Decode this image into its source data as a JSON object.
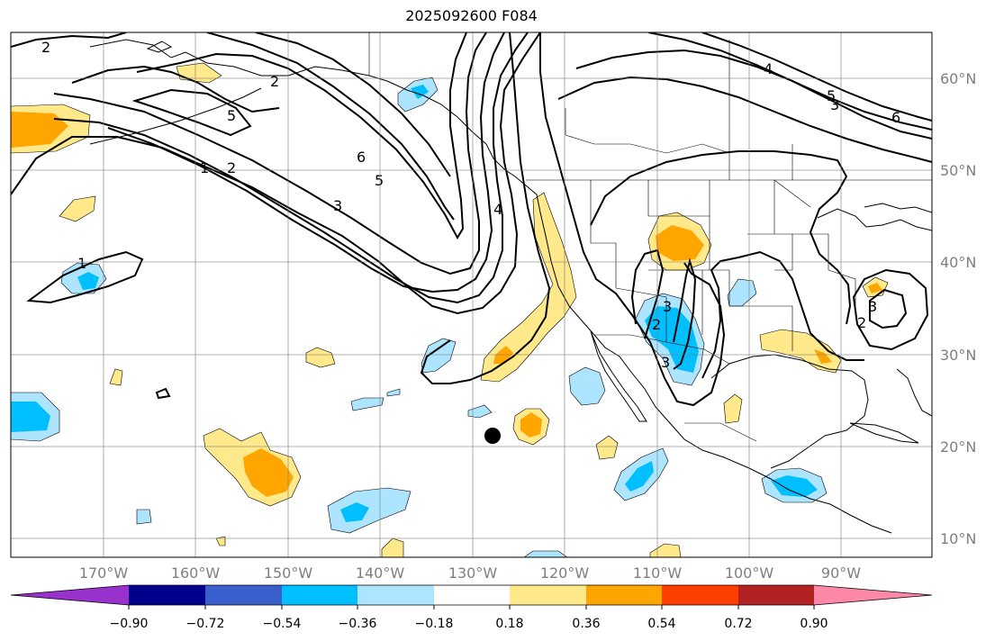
{
  "title": "2025092600 F084",
  "map": {
    "lon_labels": [
      "170°W",
      "160°W",
      "150°W",
      "140°W",
      "130°W",
      "120°W",
      "110°W",
      "100°W",
      "90°W"
    ],
    "lat_labels": [
      "60°N",
      "50°N",
      "40°N",
      "30°N",
      "20°N",
      "10°N"
    ],
    "contour_labels": [
      "2",
      "1",
      "2",
      "3",
      "5",
      "5",
      "6",
      "4",
      "4",
      "5",
      "6",
      "1",
      "2",
      "3",
      "3",
      "2",
      "2",
      "3",
      "3"
    ],
    "marker": "black-dot"
  },
  "colorbar": {
    "colors": [
      "#9932cc",
      "#00008b",
      "#3a5fcd",
      "#00bfff",
      "#ade4ff",
      "#ffffff",
      "#ffe98a",
      "#ffa500",
      "#ff3e00",
      "#b22222",
      "#ff88a9"
    ],
    "ticks": [
      "−0.90",
      "−0.72",
      "−0.54",
      "−0.36",
      "−0.18",
      "0.18",
      "0.36",
      "0.54",
      "0.72",
      "0.90"
    ]
  }
}
